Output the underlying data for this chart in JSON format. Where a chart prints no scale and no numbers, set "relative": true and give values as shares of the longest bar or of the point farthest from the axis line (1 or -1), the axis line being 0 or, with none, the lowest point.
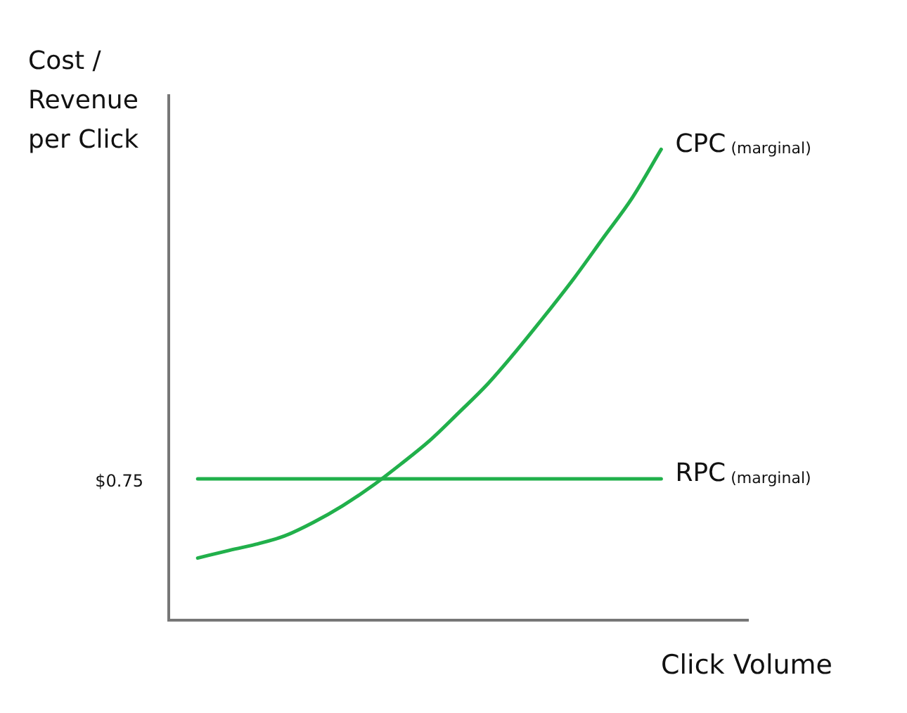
{
  "chart_data": {
    "type": "line",
    "relative": true,
    "xlabel": "Click Volume",
    "ylabel": "Cost / Revenue per Click",
    "tick_labels": false,
    "legend": false,
    "marker": "none",
    "categories": [
      null,
      null,
      null,
      null,
      null,
      null,
      null,
      null,
      null,
      null,
      null,
      null,
      null,
      null,
      null,
      null,
      null,
      null,
      null,
      null,
      null
    ],
    "series": [
      {
        "name": "CPC (marginal)",
        "color": "#21b04b",
        "values": [
          null,
          0.132,
          0.147,
          0.161,
          0.179,
          0.208,
          0.243,
          0.284,
          0.331,
          0.381,
          0.44,
          0.501,
          0.572,
          0.648,
          0.727,
          0.812,
          0.897,
          1.0,
          null,
          null,
          null
        ]
      },
      {
        "name": "RPC (marginal)",
        "color": "#21b04b",
        "values": [
          null,
          0.3,
          0.3,
          0.3,
          0.3,
          0.3,
          0.3,
          0.3,
          0.3,
          0.3,
          0.3,
          0.3,
          0.3,
          0.3,
          0.3,
          0.3,
          0.3,
          0.3,
          null,
          null,
          null
        ]
      }
    ],
    "annotations": [
      "$0.75"
    ]
  }
}
